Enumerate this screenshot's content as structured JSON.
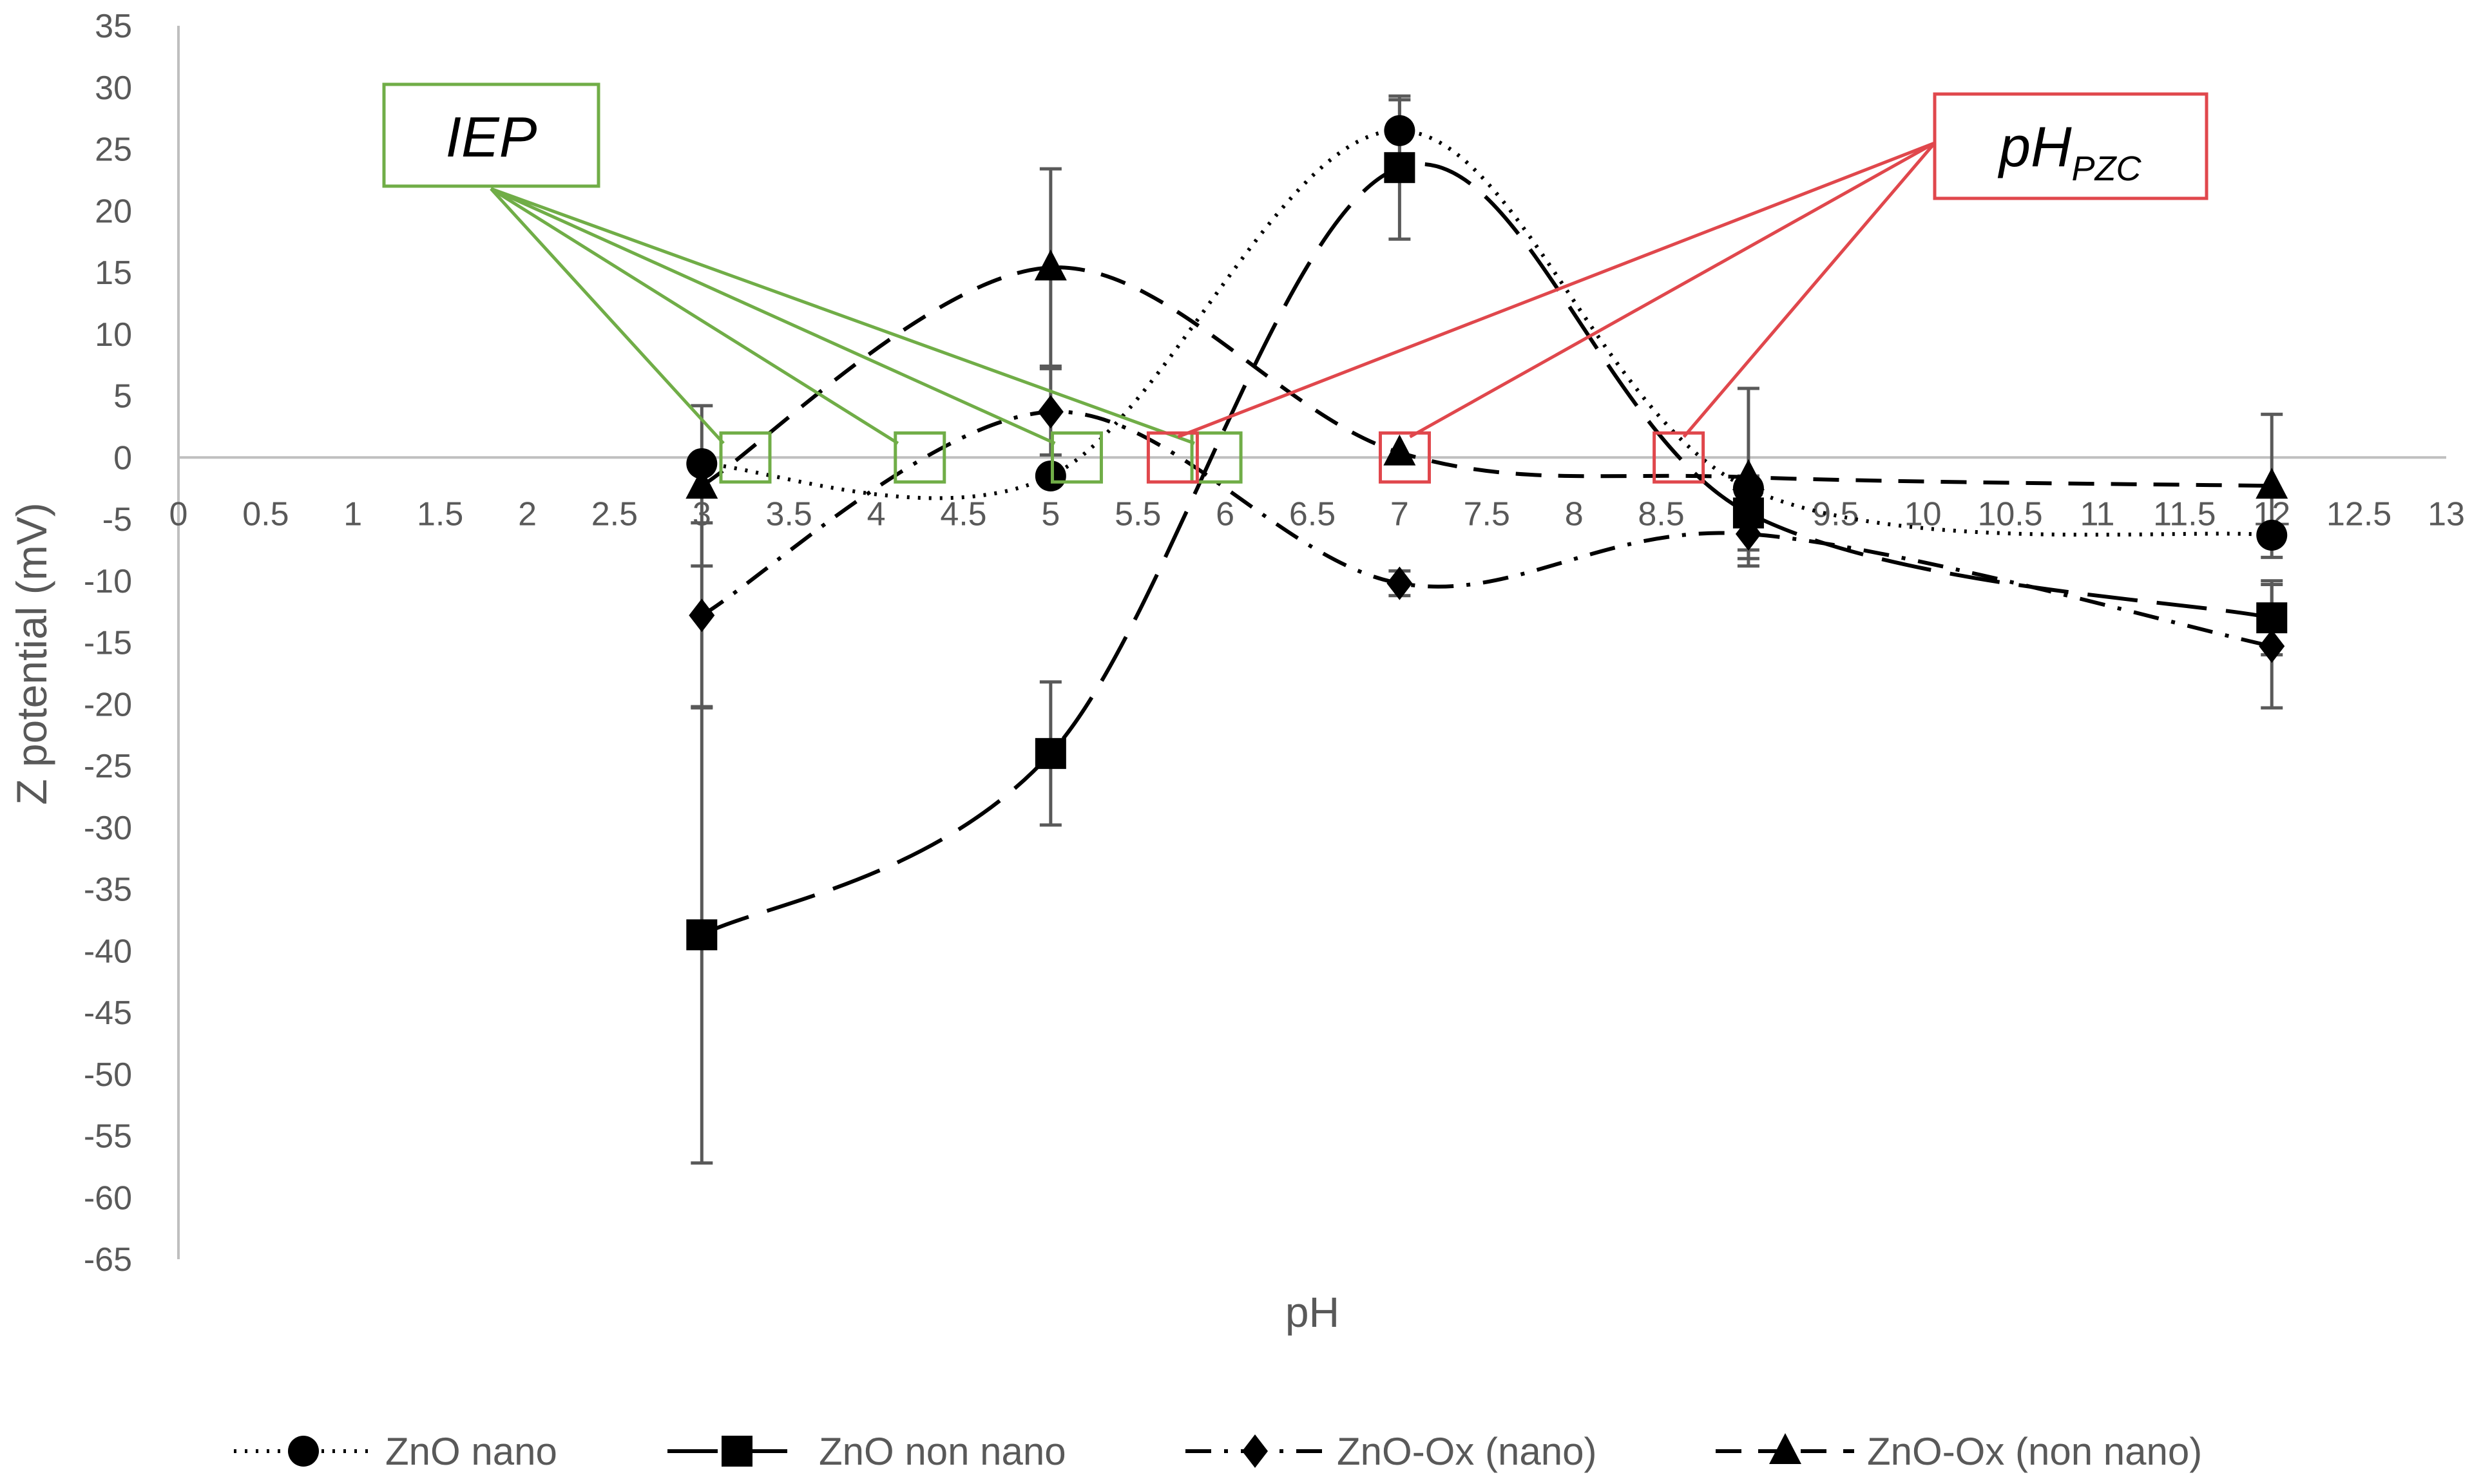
{
  "chart_data": {
    "type": "line",
    "title": "",
    "xlabel": "pH",
    "ylabel": "Z potential (mV)",
    "xlim": [
      0,
      13
    ],
    "ylim": [
      -65,
      35
    ],
    "x_ticks": [
      "0",
      "0.5",
      "1",
      "1.5",
      "2",
      "2.5",
      "3",
      "3.5",
      "4",
      "4.5",
      "5",
      "5.5",
      "6",
      "6.5",
      "7",
      "7.5",
      "8",
      "8.5",
      "9",
      "9.5",
      "10",
      "10.5",
      "11",
      "11.5",
      "12",
      "12.5",
      "13"
    ],
    "y_ticks": [
      "35",
      "30",
      "25",
      "20",
      "15",
      "10",
      "5",
      "0",
      "-5",
      "-10",
      "-15",
      "-20",
      "-25",
      "-30",
      "-35",
      "-40",
      "-45",
      "-50",
      "-55",
      "-60",
      "-65"
    ],
    "legend_position": "bottom",
    "series": [
      {
        "name": "ZnO nano",
        "style": "dotted",
        "marker": "circle",
        "x": [
          3,
          5,
          7,
          9,
          12
        ],
        "values": [
          -0.5,
          -1.5,
          26.5,
          -2.5,
          -6.3
        ],
        "errors": [
          null,
          null,
          2.5,
          null,
          null
        ]
      },
      {
        "name": "ZnO non nano",
        "style": "longdash",
        "marker": "square",
        "x": [
          3,
          5,
          7,
          9,
          12
        ],
        "values": [
          -38.7,
          -24,
          23.5,
          -4.5,
          -13
        ],
        "errors": [
          18.5,
          5.8,
          5.8,
          3,
          3
        ]
      },
      {
        "name": "ZnO-Ox (nano)",
        "style": "dashdot",
        "marker": "diamond",
        "x": [
          3,
          5,
          7,
          9,
          12
        ],
        "values": [
          -12.8,
          3.7,
          -10.2,
          -6.2,
          -15.3
        ],
        "errors": [
          7.5,
          3.5,
          1,
          2,
          5
        ]
      },
      {
        "name": "ZnO-Ox (non nano)",
        "style": "dash",
        "marker": "triangle",
        "x": [
          3,
          5,
          7,
          9,
          12
        ],
        "values": [
          -2.3,
          15.4,
          0.4,
          -1.6,
          -2.3
        ],
        "errors": [
          6.5,
          8,
          null,
          7.2,
          5.8
        ]
      }
    ],
    "annotations": [
      {
        "label": "IEP",
        "color": "#70ad47",
        "points_x": [
          3.25,
          4.25,
          5.15,
          5.95
        ]
      },
      {
        "label": "pH",
        "subscript": "PZC",
        "color": "#e0474c",
        "points_x": [
          5.7,
          7.03,
          8.6
        ]
      }
    ]
  }
}
